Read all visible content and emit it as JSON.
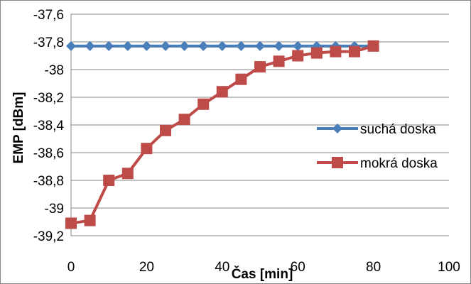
{
  "chart_data": {
    "type": "line",
    "xlabel": "Čas [min]",
    "ylabel": "EMP [dBm]",
    "xlim": [
      0,
      100
    ],
    "ylim": [
      -39.2,
      -37.6
    ],
    "xticks": [
      0,
      20,
      40,
      60,
      80,
      100
    ],
    "yticks": [
      -37.6,
      -37.8,
      -38,
      -38.2,
      -38.4,
      -38.6,
      -38.8,
      -39,
      -39.2
    ],
    "xtick_labels": [
      "0",
      "20",
      "40",
      "60",
      "80",
      "100"
    ],
    "ytick_labels": [
      "-37,6",
      "-37,8",
      "-38",
      "-38,2",
      "-38,4",
      "-38,6",
      "-38,8",
      "-39",
      "-39,2"
    ],
    "grid": "horizontal",
    "legend_position": "right",
    "series": [
      {
        "name": "suchá doska",
        "color": "#4a7ebb",
        "marker": "diamond",
        "x": [
          0,
          5,
          10,
          15,
          20,
          25,
          30,
          35,
          40,
          45,
          50,
          55,
          60,
          65,
          70,
          75,
          80
        ],
        "values": [
          -37.83,
          -37.83,
          -37.83,
          -37.83,
          -37.83,
          -37.83,
          -37.83,
          -37.83,
          -37.83,
          -37.83,
          -37.83,
          -37.83,
          -37.83,
          -37.83,
          -37.83,
          -37.83,
          -37.83
        ]
      },
      {
        "name": "mokrá doska",
        "color": "#be4b48",
        "marker": "square",
        "x": [
          0,
          5,
          10,
          15,
          20,
          25,
          30,
          35,
          40,
          45,
          50,
          55,
          60,
          65,
          70,
          75,
          80
        ],
        "values": [
          -39.11,
          -39.09,
          -38.8,
          -38.75,
          -38.57,
          -38.44,
          -38.36,
          -38.25,
          -38.16,
          -38.07,
          -37.98,
          -37.94,
          -37.9,
          -37.88,
          -37.87,
          -37.87,
          -37.83
        ]
      }
    ]
  }
}
